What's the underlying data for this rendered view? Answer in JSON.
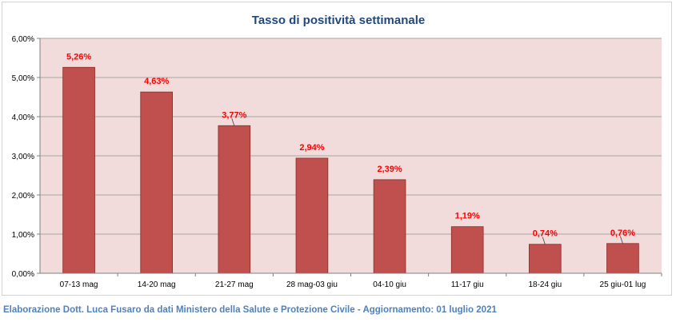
{
  "chart_data": {
    "type": "bar",
    "title": "Tasso di positività settimanale",
    "categories": [
      "07-13 mag",
      "14-20 mag",
      "21-27 mag",
      "28 mag-03 giu",
      "04-10 giu",
      "11-17 giu",
      "18-24 giu",
      "25 giu-01 lug"
    ],
    "values": [
      5.26,
      4.63,
      3.77,
      2.94,
      2.39,
      1.19,
      0.74,
      0.76
    ],
    "data_labels": [
      "5,26%",
      "4,63%",
      "3,77%",
      "2,94%",
      "2,39%",
      "1,19%",
      "0,74%",
      "0,76%"
    ],
    "y_ticks": [
      0,
      1,
      2,
      3,
      4,
      5,
      6
    ],
    "y_tick_labels": [
      "0,00%",
      "1,00%",
      "2,00%",
      "3,00%",
      "4,00%",
      "5,00%",
      "6,00%"
    ],
    "ylim": [
      0,
      6
    ],
    "xlabel": "",
    "ylabel": "",
    "grid": true,
    "legend": "none",
    "colors": {
      "bar": "#c0504d",
      "bar_border": "#8c2a27",
      "plot_bg": "#f2dcdb",
      "grid": "#a6a6a6",
      "title": "#1f497d",
      "data_label": "#ff0000"
    }
  },
  "footer": {
    "credit": "Elaborazione Dott. Luca Fusaro da dati Ministero della Salute e Protezione Civile - Aggiornamento: 01 luglio 2021"
  }
}
